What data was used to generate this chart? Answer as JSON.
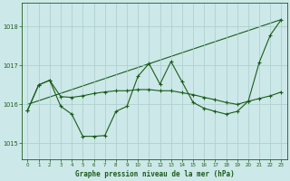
{
  "title": "Graphe pression niveau de la mer (hPa)",
  "background_color": "#cce8e8",
  "grid_color": "#aacccc",
  "line_color": "#1a5c1a",
  "xlim": [
    -0.5,
    23.5
  ],
  "ylim": [
    1014.6,
    1018.6
  ],
  "yticks": [
    1015,
    1016,
    1017,
    1018
  ],
  "xticks": [
    0,
    1,
    2,
    3,
    4,
    5,
    6,
    7,
    8,
    9,
    10,
    11,
    12,
    13,
    14,
    15,
    16,
    17,
    18,
    19,
    20,
    21,
    22,
    23
  ],
  "series_main_x": [
    0,
    1,
    2,
    3,
    4,
    5,
    6,
    7,
    8,
    9,
    10,
    11,
    12,
    13,
    14,
    15,
    16,
    17,
    18,
    19,
    20,
    21,
    22,
    23
  ],
  "series_main_y": [
    1015.85,
    1016.5,
    1016.62,
    1015.95,
    1015.75,
    1015.18,
    1015.18,
    1015.2,
    1015.82,
    1015.95,
    1016.72,
    1017.05,
    1016.52,
    1017.1,
    1016.58,
    1016.05,
    1015.9,
    1015.82,
    1015.75,
    1015.82,
    1016.08,
    1017.08,
    1017.78,
    1018.18
  ],
  "series_smooth_x": [
    0,
    1,
    2,
    3,
    4,
    5,
    6,
    7,
    8,
    9,
    10,
    11,
    12,
    13,
    14,
    15,
    16,
    17,
    18,
    19,
    20,
    21,
    22,
    23
  ],
  "series_smooth_y": [
    1015.85,
    1016.5,
    1016.62,
    1016.2,
    1016.18,
    1016.22,
    1016.28,
    1016.32,
    1016.35,
    1016.35,
    1016.38,
    1016.38,
    1016.35,
    1016.35,
    1016.3,
    1016.25,
    1016.18,
    1016.12,
    1016.05,
    1016.0,
    1016.08,
    1016.15,
    1016.22,
    1016.32
  ],
  "series_trend_x": [
    0,
    23
  ],
  "series_trend_y": [
    1016.0,
    1018.18
  ]
}
